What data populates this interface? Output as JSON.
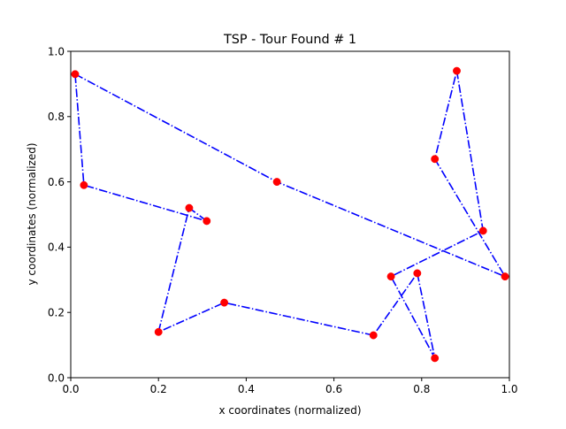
{
  "chart_data": {
    "type": "line",
    "title": "TSP - Tour Found # 1",
    "xlabel": "x coordinates (normalized)",
    "ylabel": "y coordinates (normalized)",
    "xlim": [
      0.0,
      1.0
    ],
    "ylim": [
      0.0,
      1.0
    ],
    "xticks": [
      "0.0",
      "0.2",
      "0.4",
      "0.6",
      "0.8",
      "1.0"
    ],
    "yticks": [
      "0.0",
      "0.2",
      "0.4",
      "0.6",
      "0.8",
      "1.0"
    ],
    "grid": false,
    "legend": "none",
    "series": [
      {
        "style": "dash-dot line with circle markers",
        "line_color": "#0000ff",
        "marker_color": "#ff0000",
        "x": [
          0.01,
          0.47,
          0.99,
          0.83,
          0.88,
          0.94,
          0.73,
          0.83,
          0.79,
          0.69,
          0.35,
          0.2,
          0.27,
          0.31,
          0.03,
          0.01
        ],
        "y": [
          0.93,
          0.6,
          0.31,
          0.67,
          0.94,
          0.45,
          0.31,
          0.06,
          0.32,
          0.13,
          0.23,
          0.14,
          0.52,
          0.48,
          0.59,
          0.93
        ]
      }
    ]
  }
}
